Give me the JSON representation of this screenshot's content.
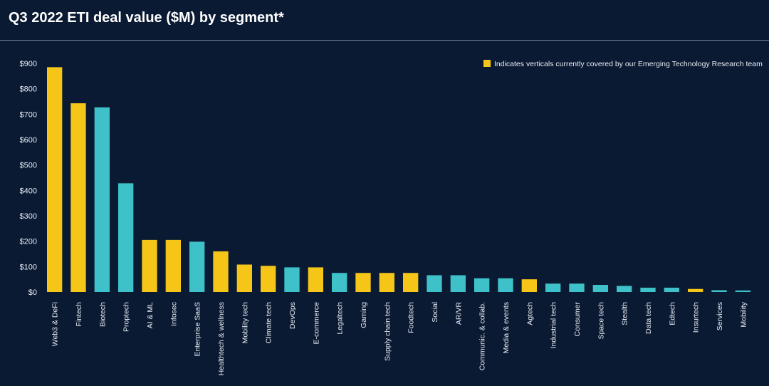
{
  "colors": {
    "background": "#0a1a33",
    "covered": "#f5c518",
    "not_covered": "#3ec1c9",
    "text": "#e8ecf2"
  },
  "legend": {
    "label": "Indicates verticals currently covered by our Emerging Technology Research team",
    "color": "#f5c518",
    "placement": "top-right"
  },
  "chart_data": {
    "type": "bar",
    "title": "Q3 2022 ETI deal value ($M) by segment*",
    "xlabel": "",
    "ylabel": "",
    "ylim": [
      0,
      900
    ],
    "yticks": [
      0,
      100,
      200,
      300,
      400,
      500,
      600,
      700,
      800,
      900
    ],
    "ytick_labels": [
      "$0",
      "$100",
      "$200",
      "$300",
      "$400",
      "$500",
      "$600",
      "$700",
      "$800",
      "$900"
    ],
    "grid": false,
    "categories": [
      "Web3 & DeFi",
      "Fintech",
      "Biotech",
      "Proptech",
      "AI & ML",
      "Infosec",
      "Enterprise SaaS",
      "Healthtech & wellness",
      "Mobility tech",
      "Climate tech",
      "DevOps",
      "E-commerce",
      "Legaltech",
      "Gaming",
      "Supply chain tech",
      "Foodtech",
      "Social",
      "AR/VR",
      "Communic. & collab.",
      "Media & events",
      "Agtech",
      "Industrial tech",
      "Consumer",
      "Space tech",
      "Stealth",
      "Data tech",
      "Edtech",
      "Insurtech",
      "Services",
      "Mobility"
    ],
    "values": [
      885,
      743,
      727,
      428,
      205,
      205,
      198,
      160,
      108,
      103,
      97,
      97,
      75,
      75,
      75,
      75,
      66,
      66,
      54,
      54,
      50,
      33,
      33,
      28,
      24,
      17,
      17,
      12,
      7,
      6
    ],
    "covered": [
      true,
      true,
      false,
      false,
      true,
      true,
      false,
      true,
      true,
      true,
      false,
      true,
      false,
      true,
      true,
      true,
      false,
      false,
      false,
      false,
      true,
      false,
      false,
      false,
      false,
      false,
      false,
      true,
      false,
      false
    ]
  }
}
